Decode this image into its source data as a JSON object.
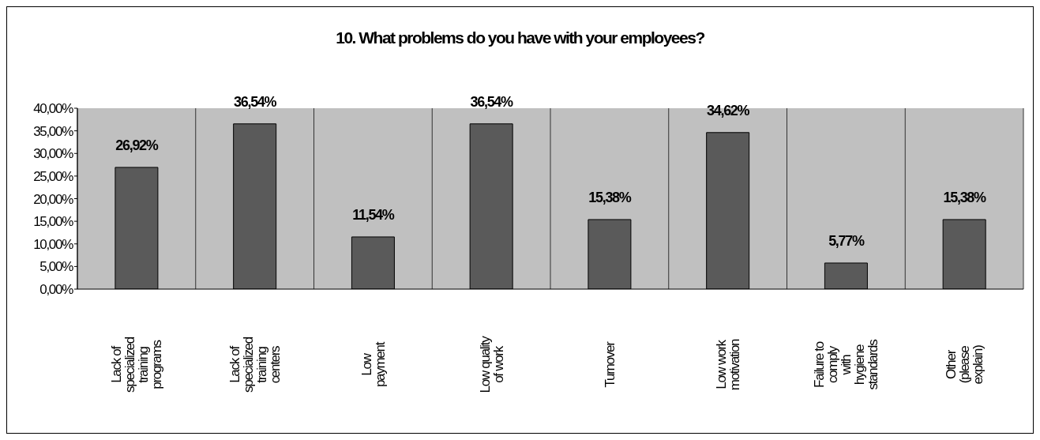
{
  "chart_data": {
    "type": "bar",
    "title": "10. What problems do you have with your employees?",
    "categories": [
      "Lack of\nspecialized\ntraining\nprograms",
      "Lack of\nspecialized\ntraining\ncenters",
      "Low\npayment",
      "Low quality\nof work",
      "Turnover",
      "Low work\nmotivation",
      "Failure to\ncomply\nwith\nhygiene\nstandards",
      "Other\n(please\nexplain)"
    ],
    "values": [
      26.92,
      36.54,
      11.54,
      36.54,
      15.38,
      34.62,
      5.77,
      15.38
    ],
    "value_labels": [
      "26,92%",
      "36,54%",
      "11,54%",
      "36,54%",
      "15,38%",
      "34,62%",
      "5,77%",
      "15,38%"
    ],
    "color": "#5a5a5a",
    "ylim": [
      0,
      40
    ],
    "yticks": [
      {
        "value": 0,
        "label": "0,00%"
      },
      {
        "value": 5,
        "label": "5,00%"
      },
      {
        "value": 10,
        "label": "10,00%"
      },
      {
        "value": 15,
        "label": "15,00%"
      },
      {
        "value": 20,
        "label": "20,00%"
      },
      {
        "value": 25,
        "label": "25,00%"
      },
      {
        "value": 30,
        "label": "30,00%"
      },
      {
        "value": 35,
        "label": "35,00%"
      },
      {
        "value": 40,
        "label": "40,00%"
      }
    ],
    "grid": "x",
    "legend": false
  }
}
